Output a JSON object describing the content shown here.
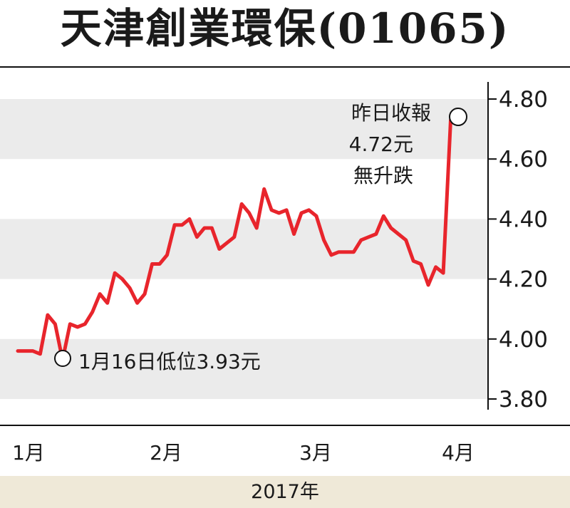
{
  "chart_data": {
    "type": "line",
    "title": "天津創業環保(01065)",
    "xlabel": "2017年",
    "x_ticks": [
      "1月",
      "2月",
      "3月",
      "4月"
    ],
    "y_ticks": [
      "4.80",
      "4.60",
      "4.40",
      "4.20",
      "4.00",
      "3.80"
    ],
    "ylim": [
      3.75,
      4.85
    ],
    "grid": "alternating horizontal bands",
    "line_color": "#e8252c",
    "band_color": "#ebebeb",
    "series": [
      {
        "values": [
          3.96,
          3.96,
          3.96,
          3.95,
          4.08,
          4.05,
          3.93,
          4.05,
          4.04,
          4.05,
          4.09,
          4.15,
          4.12,
          4.22,
          4.2,
          4.17,
          4.12,
          4.15,
          4.25,
          4.25,
          4.28,
          4.38,
          4.38,
          4.4,
          4.34,
          4.37,
          4.37,
          4.3,
          4.32,
          4.34,
          4.45,
          4.42,
          4.37,
          4.5,
          4.43,
          4.42,
          4.43,
          4.35,
          4.42,
          4.43,
          4.41,
          4.33,
          4.28,
          4.29,
          4.29,
          4.29,
          4.33,
          4.34,
          4.35,
          4.41,
          4.37,
          4.35,
          4.33,
          4.26,
          4.25,
          4.18,
          4.24,
          4.22,
          4.73,
          4.72
        ]
      }
    ],
    "annotations": {
      "low": "1月16日低位3.93元",
      "close_line1": "昨日收報",
      "close_line2": "4.72元",
      "close_line3": "無升跌"
    }
  }
}
